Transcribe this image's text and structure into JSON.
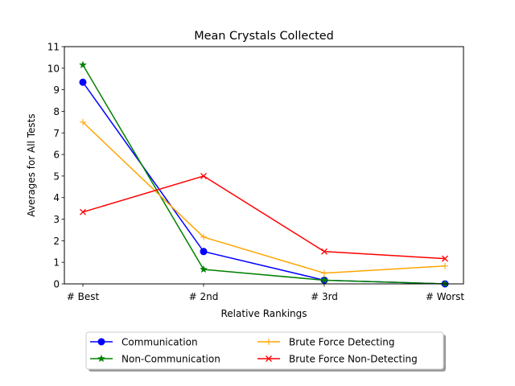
{
  "chart_data": {
    "type": "line",
    "title": "Mean Crystals Collected",
    "xlabel": "Relative Rankings",
    "ylabel": "Averages for All Tests",
    "categories": [
      "# Best",
      "# 2nd",
      "# 3rd",
      "# Worst"
    ],
    "ylim": [
      0,
      11
    ],
    "yticks": [
      0,
      1,
      2,
      3,
      4,
      5,
      6,
      7,
      8,
      9,
      10,
      11
    ],
    "grid": false,
    "legend_position": "below",
    "series": [
      {
        "name": "Communication",
        "values": [
          9.35,
          1.5,
          0.17,
          0.0
        ],
        "color": "#0000ff",
        "marker": "circle"
      },
      {
        "name": "Non-Communication",
        "values": [
          10.15,
          0.67,
          0.17,
          0.0
        ],
        "color": "#008000",
        "marker": "star"
      },
      {
        "name": "Brute Force Detecting",
        "values": [
          7.5,
          2.17,
          0.5,
          0.83
        ],
        "color": "#ffa500",
        "marker": "plus"
      },
      {
        "name": "Brute Force Non-Detecting",
        "values": [
          3.33,
          5.0,
          1.5,
          1.17
        ],
        "color": "#ff0000",
        "marker": "x"
      }
    ]
  }
}
